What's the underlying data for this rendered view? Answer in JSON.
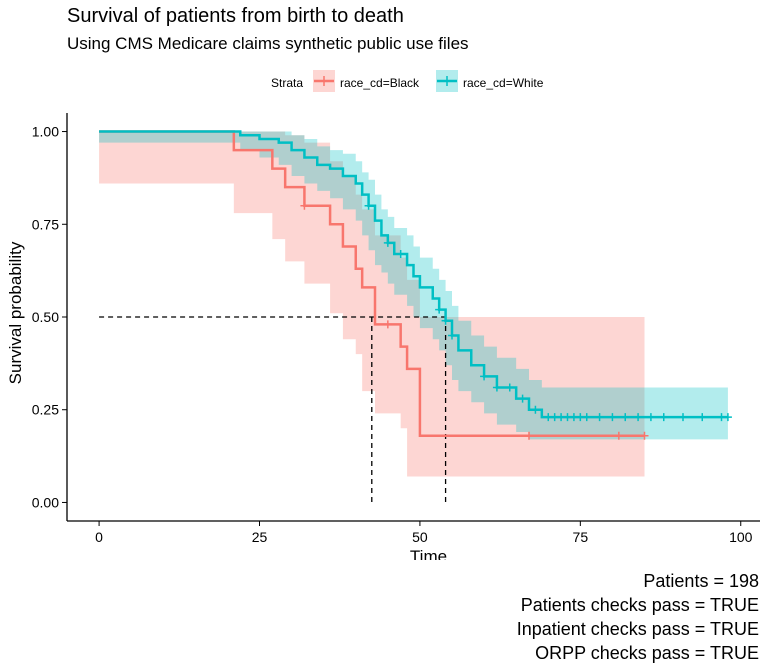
{
  "chart_data": {
    "type": "line",
    "subtype": "kaplan-meier-step",
    "title": "Survival of patients from birth to death",
    "subtitle": "Using CMS Medicare claims synthetic public use files",
    "xlabel": "Time",
    "ylabel": "Survival probability",
    "xlim": [
      -5,
      103
    ],
    "ylim": [
      -0.05,
      1.05
    ],
    "x_ticks": [
      0,
      25,
      50,
      75,
      100
    ],
    "x_tick_labels": [
      "0",
      "25",
      "50",
      "75",
      "100"
    ],
    "y_ticks": [
      0,
      0.25,
      0.5,
      0.75,
      1
    ],
    "y_tick_labels": [
      "0.00",
      "0.25",
      "0.50",
      "0.75",
      "1.00"
    ],
    "grid": false,
    "legend": {
      "title": "Strata",
      "position": "top"
    },
    "series": [
      {
        "name": "race_cd=Black",
        "color": "#F8766D",
        "fill": "#F8766D",
        "x": [
          0,
          21,
          27,
          29,
          32,
          36,
          38,
          40,
          41,
          43,
          47,
          48,
          50,
          85
        ],
        "y": [
          1.0,
          0.95,
          0.9,
          0.85,
          0.8,
          0.75,
          0.69,
          0.63,
          0.58,
          0.48,
          0.42,
          0.36,
          0.18,
          0.18
        ],
        "ci_upper": [
          1.0,
          1.0,
          1.0,
          0.99,
          0.97,
          0.92,
          0.88,
          0.83,
          0.79,
          0.72,
          0.66,
          0.6,
          0.5,
          0.5
        ],
        "ci_lower": [
          1.0,
          0.86,
          0.78,
          0.71,
          0.65,
          0.59,
          0.51,
          0.44,
          0.4,
          0.3,
          0.24,
          0.2,
          0.07,
          0.07
        ],
        "censor_x": [
          32,
          45,
          67,
          81,
          85
        ],
        "censor_y": [
          0.8,
          0.48,
          0.18,
          0.18,
          0.18
        ]
      },
      {
        "name": "race_cd=White",
        "color": "#00BFC4",
        "fill": "#00BFC4",
        "x": [
          0,
          22,
          25,
          28,
          30,
          32,
          34,
          36,
          38,
          40,
          41,
          42,
          43,
          44,
          45,
          46,
          48,
          49,
          50,
          52,
          53,
          54,
          55,
          56,
          58,
          60,
          62,
          65,
          67,
          69,
          98
        ],
        "y": [
          1.0,
          0.99,
          0.98,
          0.97,
          0.95,
          0.93,
          0.91,
          0.9,
          0.88,
          0.86,
          0.83,
          0.8,
          0.76,
          0.72,
          0.7,
          0.67,
          0.64,
          0.61,
          0.58,
          0.55,
          0.52,
          0.49,
          0.45,
          0.41,
          0.37,
          0.34,
          0.31,
          0.28,
          0.25,
          0.23,
          0.23
        ],
        "ci_upper": [
          1.0,
          1.0,
          1.0,
          1.0,
          0.99,
          0.98,
          0.96,
          0.95,
          0.94,
          0.92,
          0.89,
          0.87,
          0.83,
          0.79,
          0.77,
          0.74,
          0.72,
          0.69,
          0.66,
          0.63,
          0.6,
          0.57,
          0.53,
          0.49,
          0.45,
          0.42,
          0.39,
          0.36,
          0.33,
          0.31,
          0.31
        ],
        "ci_lower": [
          1.0,
          0.97,
          0.95,
          0.93,
          0.91,
          0.88,
          0.86,
          0.84,
          0.82,
          0.79,
          0.76,
          0.72,
          0.68,
          0.64,
          0.62,
          0.59,
          0.56,
          0.53,
          0.5,
          0.47,
          0.44,
          0.41,
          0.37,
          0.33,
          0.3,
          0.27,
          0.24,
          0.21,
          0.19,
          0.17,
          0.17
        ],
        "censor_x": [
          42,
          45,
          47,
          53,
          54,
          55,
          60,
          62,
          64,
          66,
          68,
          70,
          71,
          72,
          73,
          74,
          75,
          76,
          78,
          80,
          82,
          84,
          86,
          88,
          91,
          94,
          97,
          98
        ],
        "censor_y": [
          0.8,
          0.7,
          0.67,
          0.52,
          0.49,
          0.45,
          0.34,
          0.31,
          0.31,
          0.28,
          0.25,
          0.23,
          0.23,
          0.23,
          0.23,
          0.23,
          0.23,
          0.23,
          0.23,
          0.23,
          0.23,
          0.23,
          0.23,
          0.23,
          0.23,
          0.23,
          0.23,
          0.23
        ]
      }
    ],
    "median_lines": [
      {
        "series": "race_cd=Black",
        "x": 42.5,
        "y": 0.5
      },
      {
        "series": "race_cd=White",
        "x": 54,
        "y": 0.5
      }
    ]
  },
  "captions": [
    "Patients = 198",
    "Patients checks pass = TRUE",
    "Inpatient checks pass = TRUE",
    "ORPP checks pass = TRUE"
  ]
}
